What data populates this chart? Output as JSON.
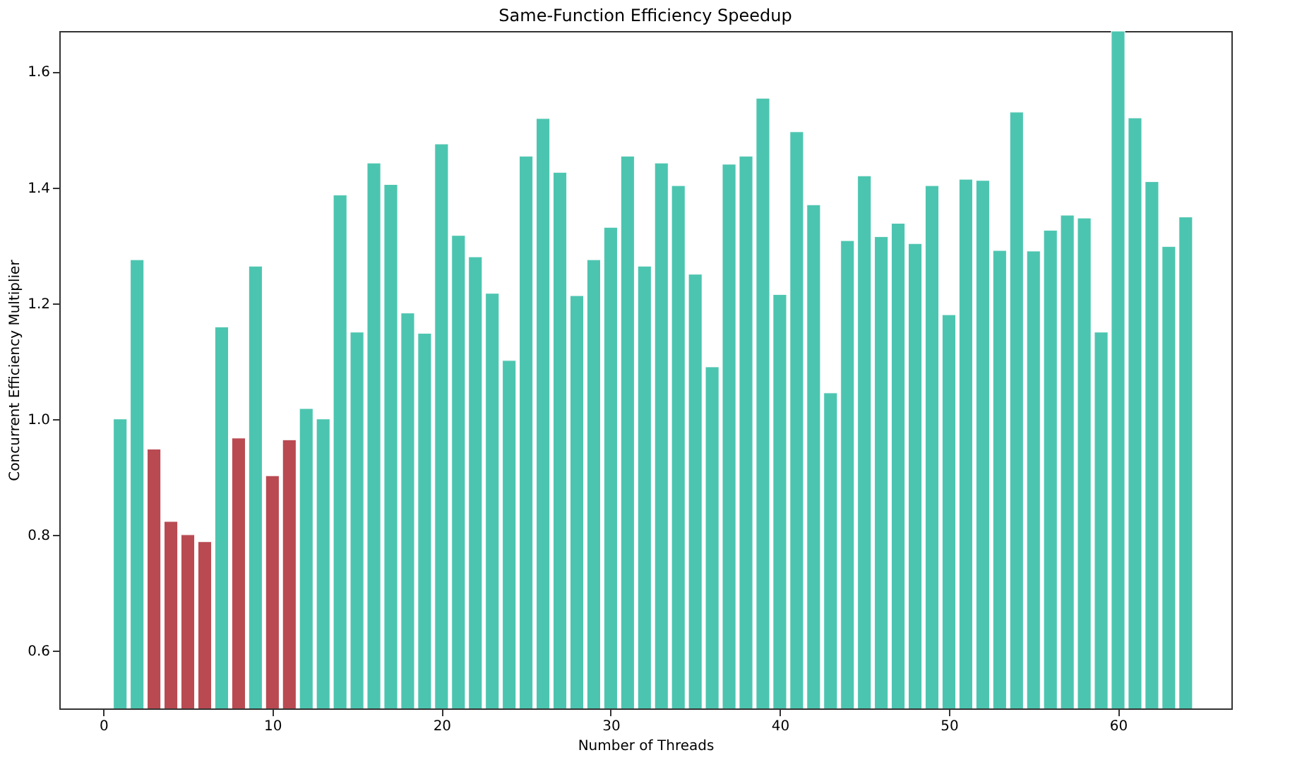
{
  "chart_data": {
    "type": "bar",
    "title": "Same-Function Efficiency Speedup",
    "xlabel": "Number of Threads",
    "ylabel": "Concurrent Efficiency Multiplier",
    "x": [
      1,
      2,
      3,
      4,
      5,
      6,
      7,
      8,
      9,
      10,
      11,
      12,
      13,
      14,
      15,
      16,
      17,
      18,
      19,
      20,
      21,
      22,
      23,
      24,
      25,
      26,
      27,
      28,
      29,
      30,
      31,
      32,
      33,
      34,
      35,
      36,
      37,
      38,
      39,
      40,
      41,
      42,
      43,
      44,
      45,
      46,
      47,
      48,
      49,
      50,
      51,
      52,
      53,
      54,
      55,
      56,
      57,
      58,
      59,
      60,
      61,
      62,
      63,
      64
    ],
    "values": [
      1.0,
      1.275,
      0.948,
      0.823,
      0.8,
      0.788,
      1.159,
      0.967,
      1.264,
      0.902,
      0.964,
      1.018,
      1.0,
      1.387,
      1.15,
      1.442,
      1.405,
      1.183,
      1.148,
      1.475,
      1.317,
      1.28,
      1.217,
      1.101,
      1.454,
      1.519,
      1.426,
      1.213,
      1.275,
      1.331,
      1.454,
      1.264,
      1.442,
      1.403,
      1.25,
      1.09,
      1.44,
      1.454,
      1.554,
      1.215,
      1.496,
      1.37,
      1.045,
      1.308,
      1.42,
      1.315,
      1.338,
      1.303,
      1.403,
      1.18,
      1.414,
      1.412,
      1.291,
      1.53,
      1.29,
      1.326,
      1.352,
      1.347,
      1.15,
      1.67,
      1.52,
      1.41,
      1.298,
      1.349
    ],
    "colors": [
      "#4cc5b0",
      "#4cc5b0",
      "#b94a52",
      "#b94a52",
      "#b94a52",
      "#b94a52",
      "#4cc5b0",
      "#b94a52",
      "#4cc5b0",
      "#b94a52",
      "#b94a52",
      "#4cc5b0",
      "#4cc5b0",
      "#4cc5b0",
      "#4cc5b0",
      "#4cc5b0",
      "#4cc5b0",
      "#4cc5b0",
      "#4cc5b0",
      "#4cc5b0",
      "#4cc5b0",
      "#4cc5b0",
      "#4cc5b0",
      "#4cc5b0",
      "#4cc5b0",
      "#4cc5b0",
      "#4cc5b0",
      "#4cc5b0",
      "#4cc5b0",
      "#4cc5b0",
      "#4cc5b0",
      "#4cc5b0",
      "#4cc5b0",
      "#4cc5b0",
      "#4cc5b0",
      "#4cc5b0",
      "#4cc5b0",
      "#4cc5b0",
      "#4cc5b0",
      "#4cc5b0",
      "#4cc5b0",
      "#4cc5b0",
      "#4cc5b0",
      "#4cc5b0",
      "#4cc5b0",
      "#4cc5b0",
      "#4cc5b0",
      "#4cc5b0",
      "#4cc5b0",
      "#4cc5b0",
      "#4cc5b0",
      "#4cc5b0",
      "#4cc5b0",
      "#4cc5b0",
      "#4cc5b0",
      "#4cc5b0",
      "#4cc5b0",
      "#4cc5b0",
      "#4cc5b0",
      "#4cc5b0",
      "#4cc5b0",
      "#4cc5b0",
      "#4cc5b0",
      "#4cc5b0"
    ],
    "xlim": [
      -2.6,
      66.7
    ],
    "ylim": [
      0.5,
      1.67
    ],
    "xticks": [
      0,
      10,
      20,
      30,
      40,
      50,
      60
    ],
    "yticks": [
      0.6,
      0.8,
      {
        "value": 1,
        "label": "1.0"
      },
      1.2,
      1.4,
      1.6
    ],
    "grid": false
  }
}
